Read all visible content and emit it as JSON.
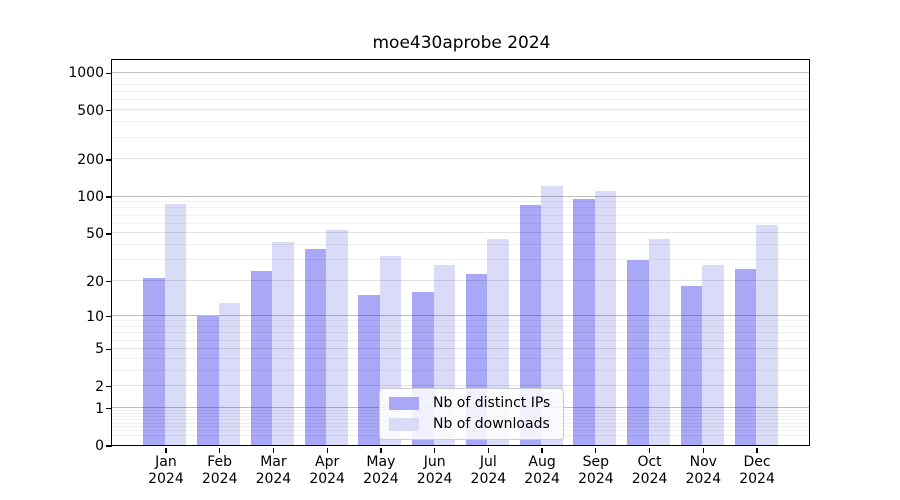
{
  "chart_data": {
    "type": "bar",
    "title": "moe430aprobe 2024",
    "categories": [
      "Jan",
      "Feb",
      "Mar",
      "Apr",
      "May",
      "Jun",
      "Jul",
      "Aug",
      "Sep",
      "Oct",
      "Nov",
      "Dec"
    ],
    "category_year": "2024",
    "series": [
      {
        "name": "Nb of distinct IPs",
        "color": "#a8a8f6",
        "values": [
          21,
          10,
          24,
          37,
          15,
          16,
          23,
          85,
          94,
          30,
          18,
          25
        ]
      },
      {
        "name": "Nb of downloads",
        "color": "#dadaf9",
        "values": [
          86,
          13,
          42,
          53,
          32,
          27,
          45,
          120,
          111,
          45,
          27,
          58
        ]
      }
    ],
    "yscale": "log1p",
    "ylim": [
      0,
      1258
    ],
    "y_major_ticks": [
      0,
      1,
      2,
      5,
      10,
      20,
      50,
      100,
      200,
      500,
      1000
    ],
    "y_minor_ticks": [
      0.2,
      0.3,
      0.4,
      0.5,
      0.6,
      0.7,
      0.8,
      0.9,
      3,
      4,
      6,
      7,
      8,
      9,
      30,
      40,
      60,
      70,
      80,
      90,
      300,
      400,
      600,
      700,
      800,
      900
    ],
    "xlabel": "",
    "ylabel": "",
    "grid": "on",
    "legend_position": "inside-bottom-center"
  }
}
